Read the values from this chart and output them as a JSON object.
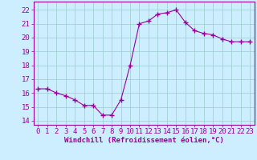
{
  "x": [
    0,
    1,
    2,
    3,
    4,
    5,
    6,
    7,
    8,
    9,
    10,
    11,
    12,
    13,
    14,
    15,
    16,
    17,
    18,
    19,
    20,
    21,
    22,
    23
  ],
  "y": [
    16.3,
    16.3,
    16.0,
    15.8,
    15.5,
    15.1,
    15.1,
    14.4,
    14.4,
    15.5,
    18.0,
    21.0,
    21.2,
    21.7,
    21.8,
    22.0,
    21.1,
    20.5,
    20.3,
    20.2,
    19.9,
    19.7,
    19.7,
    19.7
  ],
  "line_color": "#990099",
  "marker": "+",
  "marker_size": 4,
  "bg_color": "#cceeff",
  "grid_color": "#99cccc",
  "xlabel": "Windchill (Refroidissement éolien,°C)",
  "ylabel_ticks": [
    14,
    15,
    16,
    17,
    18,
    19,
    20,
    21,
    22
  ],
  "xlim": [
    -0.5,
    23.5
  ],
  "ylim": [
    13.7,
    22.6
  ],
  "xlabel_fontsize": 6.5,
  "tick_fontsize": 6.5,
  "tick_color": "#990099",
  "label_color": "#990099",
  "figsize": [
    3.2,
    2.0
  ],
  "dpi": 100
}
